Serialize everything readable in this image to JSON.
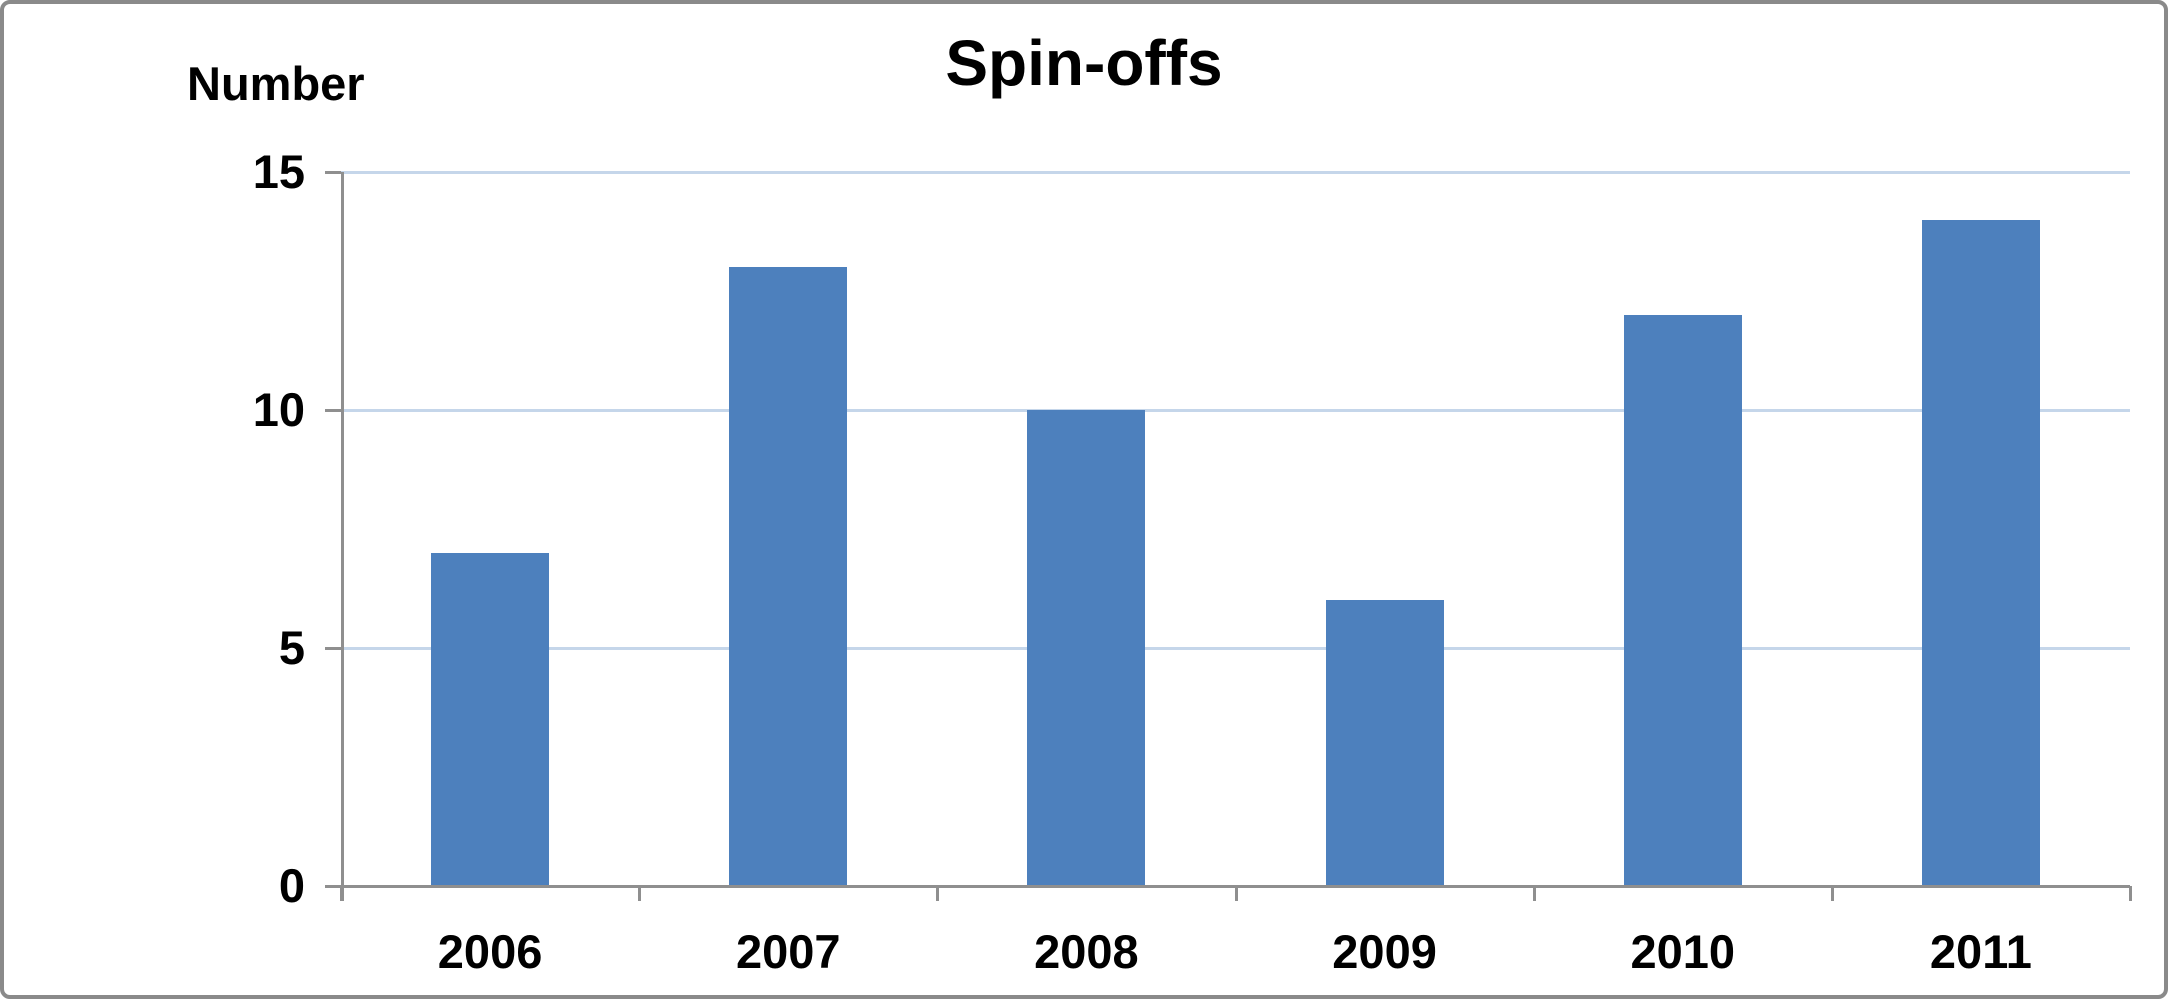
{
  "chart_data": {
    "type": "bar",
    "title": "Spin-offs",
    "xlabel": "",
    "ylabel": "Number",
    "categories": [
      "2006",
      "2007",
      "2008",
      "2009",
      "2010",
      "2011"
    ],
    "values": [
      7,
      13,
      10,
      6,
      12,
      14
    ],
    "yticks": [
      0,
      5,
      10,
      15
    ],
    "ylim": [
      0,
      15
    ],
    "grid": "horizontal",
    "legend": "none",
    "colors": {
      "bar": "#4D80BD",
      "gridline": "#C5D6EA",
      "axis": "#8F8F8F",
      "frame_border": "#8A8A8A",
      "text": "#000000"
    }
  }
}
